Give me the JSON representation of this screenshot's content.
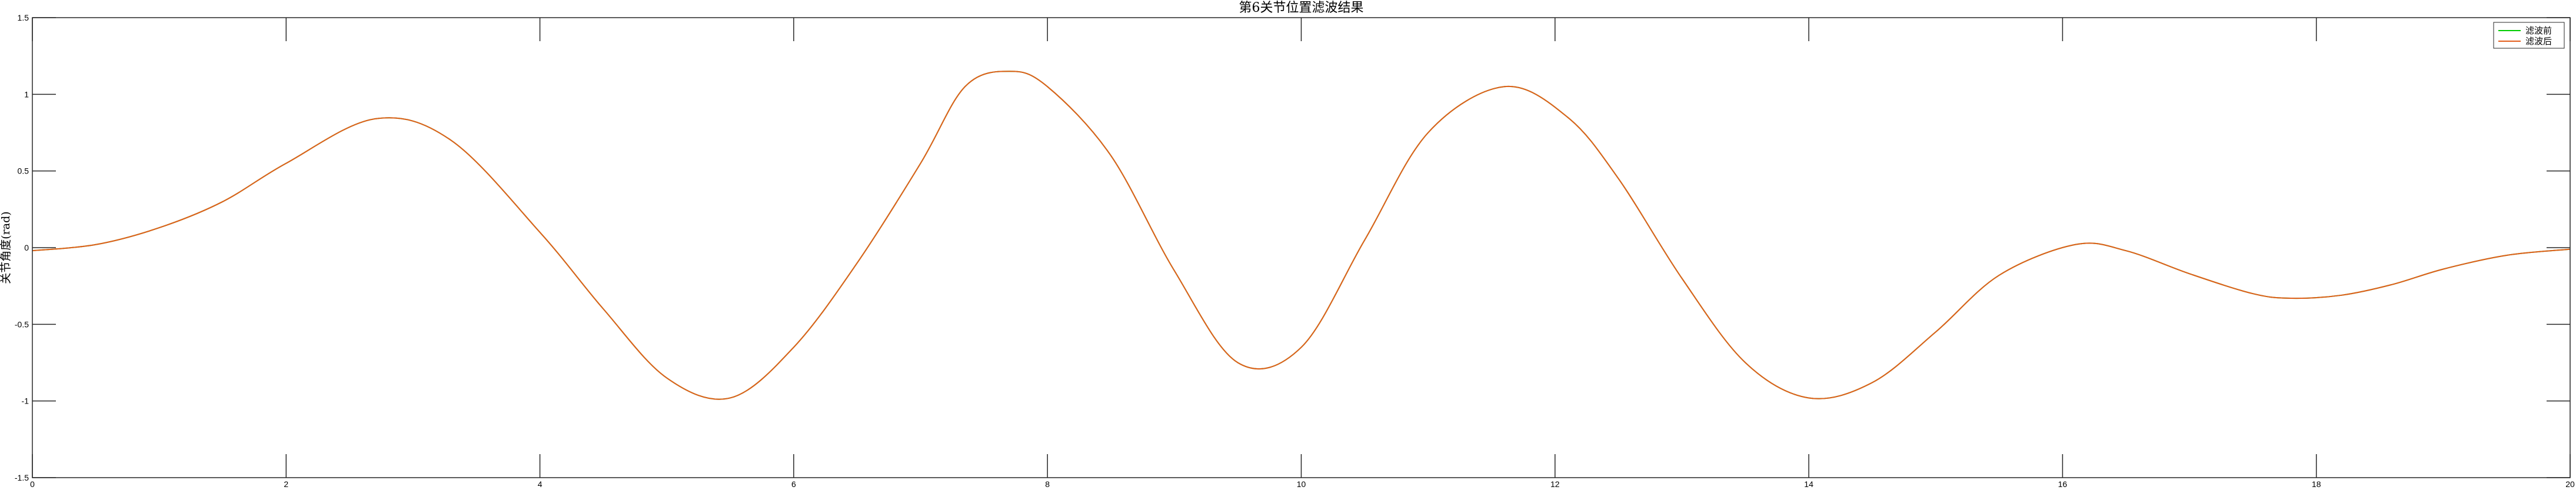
{
  "chart_data": {
    "type": "line",
    "title": "第6关节位置滤波结果",
    "xlabel": "",
    "ylabel": "关节角度(rad)",
    "xlim": [
      0,
      20
    ],
    "ylim": [
      -1.5,
      1.5
    ],
    "xticks": [
      0,
      2,
      4,
      6,
      8,
      10,
      12,
      14,
      16,
      18,
      20
    ],
    "yticks": [
      -1.5,
      -1,
      -0.5,
      0,
      0.5,
      1,
      1.5
    ],
    "xtick_labels": [
      "0",
      "2",
      "4",
      "6",
      "8",
      "10",
      "12",
      "14",
      "16",
      "18",
      "20"
    ],
    "ytick_labels": [
      "-1.5",
      "-1",
      "-0.5",
      "0",
      "0.5",
      "1",
      "1.5"
    ],
    "grid": false,
    "legend_position": "top-right",
    "series": [
      {
        "name": "滤波前",
        "color": "#00cc00",
        "x": [
          0,
          0.5,
          1.0,
          1.5,
          2.0,
          2.7,
          3.3,
          4.0,
          4.5,
          5.0,
          5.5,
          6.0,
          6.5,
          7.0,
          7.35,
          7.7,
          8.0,
          8.5,
          9.0,
          9.5,
          10.0,
          10.5,
          11.0,
          11.6,
          12.1,
          12.5,
          13.0,
          13.5,
          14.0,
          14.5,
          15.0,
          15.5,
          16.1,
          16.5,
          17.0,
          17.5,
          17.8,
          18.2,
          18.6,
          19.0,
          19.5,
          20.0
        ],
        "y": [
          -0.02,
          0.02,
          0.13,
          0.3,
          0.55,
          0.84,
          0.7,
          0.1,
          -0.4,
          -0.85,
          -0.98,
          -0.65,
          -0.1,
          0.55,
          1.05,
          1.15,
          1.05,
          0.6,
          -0.15,
          -0.75,
          -0.65,
          0.05,
          0.75,
          1.05,
          0.85,
          0.45,
          -0.2,
          -0.75,
          -0.98,
          -0.88,
          -0.55,
          -0.18,
          0.02,
          -0.02,
          -0.17,
          -0.3,
          -0.33,
          -0.31,
          -0.24,
          -0.14,
          -0.05,
          -0.01
        ]
      },
      {
        "name": "滤波后",
        "color": "#e35d1b",
        "x": [
          0,
          0.5,
          1.0,
          1.5,
          2.0,
          2.7,
          3.3,
          4.0,
          4.5,
          5.0,
          5.5,
          6.0,
          6.5,
          7.0,
          7.35,
          7.7,
          8.0,
          8.5,
          9.0,
          9.5,
          10.0,
          10.5,
          11.0,
          11.6,
          12.1,
          12.5,
          13.0,
          13.5,
          14.0,
          14.5,
          15.0,
          15.5,
          16.1,
          16.5,
          17.0,
          17.5,
          17.8,
          18.2,
          18.6,
          19.0,
          19.5,
          20.0
        ],
        "y": [
          -0.02,
          0.02,
          0.13,
          0.3,
          0.55,
          0.84,
          0.7,
          0.1,
          -0.4,
          -0.85,
          -0.98,
          -0.65,
          -0.1,
          0.55,
          1.05,
          1.15,
          1.05,
          0.6,
          -0.15,
          -0.75,
          -0.65,
          0.05,
          0.75,
          1.05,
          0.85,
          0.45,
          -0.2,
          -0.75,
          -0.98,
          -0.88,
          -0.55,
          -0.18,
          0.02,
          -0.02,
          -0.17,
          -0.3,
          -0.33,
          -0.31,
          -0.24,
          -0.14,
          -0.05,
          -0.01
        ]
      }
    ]
  }
}
